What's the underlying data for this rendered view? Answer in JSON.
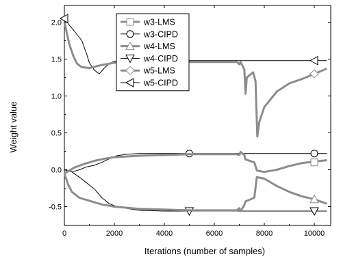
{
  "chart_data": {
    "type": "line",
    "title": "",
    "xlabel": "Iterations (number of samples)",
    "ylabel": "Weight value",
    "xlim": [
      0,
      10700
    ],
    "ylim": [
      -0.65,
      2.15
    ],
    "xticks": [
      0,
      2000,
      4000,
      6000,
      8000,
      10000
    ],
    "xtick_labels": [
      "0",
      "2000",
      "4000",
      "6000",
      "8000",
      "10000"
    ],
    "yticks": [
      -0.5,
      0.0,
      0.5,
      1.0,
      1.5,
      2.0
    ],
    "ytick_labels": [
      "-0.5",
      "0.0",
      "0.5",
      "1.0",
      "1.5",
      "2.0"
    ],
    "grid": false,
    "legend_position": "top-center",
    "series": [
      {
        "name": "w3-LMS",
        "marker": "square",
        "style": "thick-gray",
        "points": [
          [
            0,
            -0.05
          ],
          [
            200,
            -0.01
          ],
          [
            400,
            0.03
          ],
          [
            800,
            0.08
          ],
          [
            1200,
            0.12
          ],
          [
            1600,
            0.15
          ],
          [
            2000,
            0.17
          ],
          [
            3000,
            0.19
          ],
          [
            4000,
            0.2
          ],
          [
            5000,
            0.21
          ],
          [
            6000,
            0.21
          ],
          [
            6900,
            0.21
          ],
          [
            7000,
            0.2
          ],
          [
            7050,
            0.24
          ],
          [
            7200,
            0.2
          ],
          [
            7250,
            0.14
          ],
          [
            7600,
            0.1
          ],
          [
            7700,
            -0.01
          ],
          [
            8000,
            -0.03
          ],
          [
            8500,
            0.0
          ],
          [
            9000,
            0.05
          ],
          [
            9500,
            0.09
          ],
          [
            10000,
            0.11
          ],
          [
            10500,
            0.13
          ]
        ],
        "marker_points": [
          [
            10000,
            0.1
          ]
        ]
      },
      {
        "name": "w3-CIPD",
        "marker": "circle",
        "style": "thin-black",
        "points": [
          [
            0,
            0.0
          ],
          [
            300,
            -0.03
          ],
          [
            600,
            0.0
          ],
          [
            900,
            0.04
          ],
          [
            1200,
            0.06
          ],
          [
            1500,
            0.1
          ],
          [
            1800,
            0.15
          ],
          [
            2100,
            0.19
          ],
          [
            2500,
            0.21
          ],
          [
            3000,
            0.22
          ],
          [
            4000,
            0.22
          ],
          [
            5000,
            0.22
          ],
          [
            6000,
            0.22
          ],
          [
            7000,
            0.22
          ],
          [
            8000,
            0.22
          ],
          [
            9000,
            0.22
          ],
          [
            10000,
            0.22
          ],
          [
            10500,
            0.22
          ]
        ],
        "marker_points": [
          [
            5000,
            0.22
          ],
          [
            10000,
            0.22
          ]
        ]
      },
      {
        "name": "w4-LMS",
        "marker": "triangle-up",
        "style": "thick-gray",
        "points": [
          [
            0,
            -0.05
          ],
          [
            150,
            -0.2
          ],
          [
            300,
            -0.3
          ],
          [
            600,
            -0.38
          ],
          [
            1000,
            -0.42
          ],
          [
            1500,
            -0.47
          ],
          [
            2000,
            -0.5
          ],
          [
            3000,
            -0.53
          ],
          [
            4000,
            -0.54
          ],
          [
            5000,
            -0.55
          ],
          [
            6000,
            -0.55
          ],
          [
            6900,
            -0.55
          ],
          [
            7000,
            -0.52
          ],
          [
            7050,
            -0.56
          ],
          [
            7200,
            -0.48
          ],
          [
            7250,
            -0.43
          ],
          [
            7600,
            -0.38
          ],
          [
            7700,
            -0.1
          ],
          [
            8000,
            -0.12
          ],
          [
            8500,
            -0.22
          ],
          [
            9000,
            -0.3
          ],
          [
            9500,
            -0.36
          ],
          [
            10000,
            -0.4
          ],
          [
            10500,
            -0.46
          ]
        ],
        "marker_points": [
          [
            10000,
            -0.4
          ]
        ]
      },
      {
        "name": "w4-CIPD",
        "marker": "triangle-down",
        "style": "thin-black",
        "points": [
          [
            0,
            0.0
          ],
          [
            300,
            -0.03
          ],
          [
            600,
            -0.1
          ],
          [
            900,
            -0.18
          ],
          [
            1200,
            -0.26
          ],
          [
            1500,
            -0.38
          ],
          [
            1800,
            -0.46
          ],
          [
            2100,
            -0.5
          ],
          [
            2600,
            -0.53
          ],
          [
            3000,
            -0.55
          ],
          [
            4000,
            -0.56
          ],
          [
            5000,
            -0.56
          ],
          [
            6000,
            -0.56
          ],
          [
            7000,
            -0.56
          ],
          [
            8000,
            -0.56
          ],
          [
            9000,
            -0.56
          ],
          [
            10000,
            -0.56
          ],
          [
            10500,
            -0.56
          ]
        ],
        "marker_points": [
          [
            5000,
            -0.56
          ],
          [
            10000,
            -0.56
          ]
        ]
      },
      {
        "name": "w5-LMS",
        "marker": "diamond",
        "style": "thick-gray",
        "points": [
          [
            0,
            2.0
          ],
          [
            100,
            1.85
          ],
          [
            200,
            1.7
          ],
          [
            350,
            1.55
          ],
          [
            500,
            1.44
          ],
          [
            700,
            1.39
          ],
          [
            1000,
            1.38
          ],
          [
            1500,
            1.42
          ],
          [
            2000,
            1.45
          ],
          [
            3000,
            1.46
          ],
          [
            4000,
            1.46
          ],
          [
            5000,
            1.46
          ],
          [
            6000,
            1.46
          ],
          [
            6900,
            1.46
          ],
          [
            7000,
            1.43
          ],
          [
            7050,
            1.46
          ],
          [
            7200,
            1.36
          ],
          [
            7250,
            1.03
          ],
          [
            7300,
            1.25
          ],
          [
            7550,
            1.32
          ],
          [
            7650,
            1.2
          ],
          [
            7720,
            0.45
          ],
          [
            7800,
            0.65
          ],
          [
            8000,
            0.85
          ],
          [
            8500,
            1.06
          ],
          [
            9000,
            1.17
          ],
          [
            9500,
            1.23
          ],
          [
            10000,
            1.3
          ],
          [
            10500,
            1.37
          ]
        ],
        "marker_points": [
          [
            10000,
            1.3
          ]
        ]
      },
      {
        "name": "w5-CIPD",
        "marker": "triangle-left",
        "style": "thin-black",
        "points": [
          [
            0,
            2.05
          ],
          [
            200,
            1.96
          ],
          [
            400,
            1.88
          ],
          [
            700,
            1.75
          ],
          [
            900,
            1.56
          ],
          [
            1000,
            1.45
          ],
          [
            1200,
            1.35
          ],
          [
            1400,
            1.3
          ],
          [
            1600,
            1.38
          ],
          [
            1800,
            1.44
          ],
          [
            2000,
            1.47
          ],
          [
            2400,
            1.48
          ],
          [
            3000,
            1.48
          ],
          [
            4000,
            1.48
          ],
          [
            5000,
            1.48
          ],
          [
            6000,
            1.48
          ],
          [
            7000,
            1.48
          ],
          [
            8000,
            1.48
          ],
          [
            9000,
            1.48
          ],
          [
            10000,
            1.48
          ],
          [
            10500,
            1.48
          ]
        ],
        "marker_points": [
          [
            0,
            2.05
          ],
          [
            10000,
            1.48
          ]
        ]
      }
    ]
  }
}
